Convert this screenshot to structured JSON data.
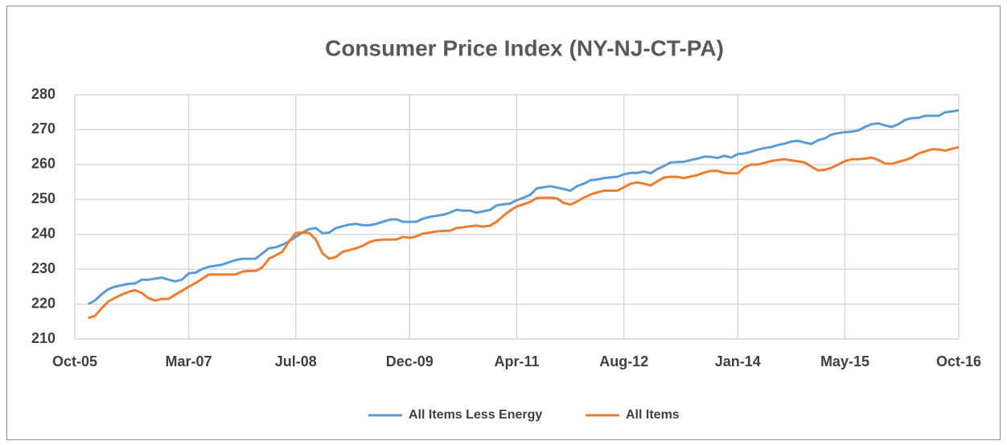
{
  "chart_data": {
    "type": "line",
    "title": "Consumer Price Index (NY-NJ-CT-PA)",
    "x": [
      "Dec-05",
      "Jan-06",
      "Feb-06",
      "Mar-06",
      "Apr-06",
      "May-06",
      "Jun-06",
      "Jul-06",
      "Aug-06",
      "Sep-06",
      "Oct-06",
      "Nov-06",
      "Dec-06",
      "Jan-07",
      "Feb-07",
      "Mar-07",
      "Apr-07",
      "May-07",
      "Jun-07",
      "Jul-07",
      "Aug-07",
      "Sep-07",
      "Oct-07",
      "Nov-07",
      "Dec-07",
      "Jan-08",
      "Feb-08",
      "Mar-08",
      "Apr-08",
      "May-08",
      "Jun-08",
      "Jul-08",
      "Aug-08",
      "Sep-08",
      "Oct-08",
      "Nov-08",
      "Dec-08",
      "Jan-09",
      "Feb-09",
      "Mar-09",
      "Apr-09",
      "May-09",
      "Jun-09",
      "Jul-09",
      "Aug-09",
      "Sep-09",
      "Oct-09",
      "Nov-09",
      "Dec-09",
      "Jan-10",
      "Feb-10",
      "Mar-10",
      "Apr-10",
      "May-10",
      "Jun-10",
      "Jul-10",
      "Aug-10",
      "Sep-10",
      "Oct-10",
      "Nov-10",
      "Dec-10",
      "Jan-11",
      "Feb-11",
      "Mar-11",
      "Apr-11",
      "May-11",
      "Jun-11",
      "Jul-11",
      "Aug-11",
      "Sep-11",
      "Oct-11",
      "Nov-11",
      "Dec-11",
      "Jan-12",
      "Feb-12",
      "Mar-12",
      "Apr-12",
      "May-12",
      "Jun-12",
      "Jul-12",
      "Aug-12",
      "Sep-12",
      "Oct-12",
      "Nov-12",
      "Dec-12",
      "Jan-13",
      "Feb-13",
      "Mar-13",
      "Apr-13",
      "May-13",
      "Jun-13",
      "Jul-13",
      "Aug-13",
      "Sep-13",
      "Oct-13",
      "Nov-13",
      "Dec-13",
      "Jan-14",
      "Feb-14",
      "Mar-14",
      "Apr-14",
      "May-14",
      "Jun-14",
      "Jul-14",
      "Aug-14",
      "Sep-14",
      "Oct-14",
      "Nov-14",
      "Dec-14",
      "Jan-15",
      "Feb-15",
      "Mar-15",
      "Apr-15",
      "May-15",
      "Jun-15",
      "Jul-15",
      "Aug-15",
      "Sep-15",
      "Oct-15",
      "Nov-15",
      "Dec-15",
      "Jan-16",
      "Feb-16",
      "Mar-16",
      "Apr-16",
      "May-16",
      "Jun-16",
      "Jul-16",
      "Aug-16",
      "Sep-16",
      "Oct-16"
    ],
    "series": [
      {
        "name": "All Items Less Energy",
        "color": "#5b9bd5",
        "values": [
          220,
          221,
          222.8,
          224.3,
          225,
          225.4,
          225.8,
          225.9,
          227,
          227,
          227.3,
          227.6,
          227,
          226.5,
          227,
          228.8,
          229,
          230,
          230.7,
          231,
          231.3,
          232,
          232.6,
          233,
          233,
          233,
          234.5,
          236,
          236.3,
          237,
          238,
          239.3,
          240.5,
          241.5,
          241.8,
          240.3,
          240.5,
          241.8,
          242.3,
          242.8,
          243,
          242.6,
          242.6,
          243,
          243.6,
          244.2,
          244.3,
          243.6,
          243.6,
          243.6,
          244.5,
          245,
          245.3,
          245.6,
          246.2,
          247,
          246.8,
          246.8,
          246.2,
          246.6,
          247,
          248.3,
          248.6,
          248.8,
          249.8,
          250.5,
          251.3,
          253.2,
          253.5,
          253.8,
          253.4,
          253,
          252.5,
          253.8,
          254.5,
          255.5,
          255.7,
          256.1,
          256.3,
          256.5,
          257.2,
          257.6,
          257.6,
          258,
          257.5,
          258.7,
          259.6,
          260.6,
          260.7,
          260.8,
          261.3,
          261.7,
          262.3,
          262.2,
          261.9,
          262.5,
          262,
          263,
          263.2,
          263.7,
          264.3,
          264.7,
          265,
          265.6,
          266,
          266.6,
          266.8,
          266.3,
          265.9,
          267,
          267.5,
          268.6,
          269,
          269.3,
          269.4,
          269.8,
          270.8,
          271.6,
          271.8,
          271.2,
          270.8,
          271.6,
          272.8,
          273.3,
          273.4,
          274,
          274,
          274,
          275,
          275.2,
          275.6
        ]
      },
      {
        "name": "All Items",
        "color": "#ed7d31",
        "values": [
          216,
          216.6,
          218.8,
          220.7,
          221.8,
          222.7,
          223.5,
          224,
          223.2,
          221.7,
          221,
          221.5,
          221.5,
          222.7,
          223.8,
          225,
          226,
          227.2,
          228.5,
          228.5,
          228.5,
          228.5,
          228.5,
          229.3,
          229.5,
          229.5,
          230.5,
          233,
          234,
          235,
          238,
          240.4,
          240.5,
          240.4,
          238.5,
          234.5,
          233,
          233.5,
          235,
          235.5,
          236,
          236.7,
          237.8,
          238.3,
          238.5,
          238.5,
          238.5,
          239.3,
          239,
          239.4,
          240.2,
          240.5,
          240.8,
          241,
          241,
          241.8,
          242,
          242.3,
          242.5,
          242.2,
          242.5,
          243.6,
          245.3,
          246.8,
          248,
          248.6,
          249.3,
          250.4,
          250.5,
          250.5,
          250.3,
          249,
          248.5,
          249.4,
          250.5,
          251.4,
          252,
          252.5,
          252.5,
          252.5,
          253.5,
          254.5,
          254.9,
          254.5,
          254,
          255.2,
          256.3,
          256.5,
          256.5,
          256.1,
          256.6,
          257,
          257.7,
          258.2,
          258.2,
          257.6,
          257.5,
          257.5,
          259.2,
          260,
          260,
          260.5,
          261,
          261.3,
          261.5,
          261.2,
          260.9,
          260.6,
          259.4,
          258.3,
          258.5,
          259.1,
          260,
          261,
          261.5,
          261.5,
          261.7,
          262,
          261.3,
          260.3,
          260.2,
          260.8,
          261.3,
          262,
          263.2,
          263.8,
          264.4,
          264.3,
          264,
          264.5,
          265
        ]
      }
    ],
    "xlim": [
      "Oct-05",
      "Oct-16"
    ],
    "xticks": [
      "Oct-05",
      "Mar-07",
      "Jul-08",
      "Dec-09",
      "Apr-11",
      "Aug-12",
      "Jan-14",
      "May-15",
      "Oct-16"
    ],
    "ylim": [
      210,
      280
    ],
    "yticks": [
      210,
      220,
      230,
      240,
      250,
      260,
      270,
      280
    ],
    "grid": true,
    "legend": "bottom"
  }
}
